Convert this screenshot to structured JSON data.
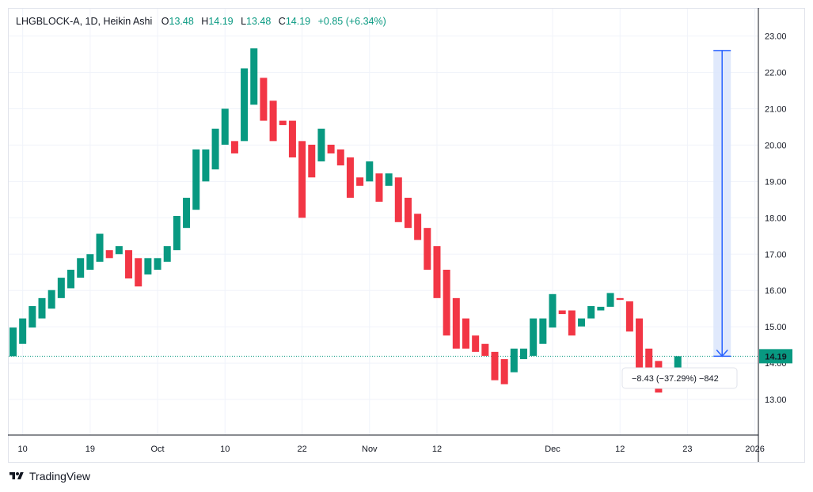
{
  "header": {
    "symbol": "LHGBLOCK-A, 1D, Heikin Ashi",
    "open_label": "O",
    "open_value": "13.48",
    "high_label": "H",
    "high_value": "14.19",
    "low_label": "L",
    "low_value": "13.48",
    "close_label": "C",
    "close_value": "14.19",
    "change": "+0.85 (+6.34%)"
  },
  "brand": {
    "name": "TradingView"
  },
  "colors": {
    "up": "#089981",
    "down": "#f23645",
    "measure": "#2962ff",
    "measure_fill": "#dbe5fb",
    "grid": "#f0f3fa"
  },
  "chart_data": {
    "type": "candlestick",
    "title": "LHGBLOCK-A, 1D, Heikin Ashi",
    "ylim": [
      12.0,
      23.6
    ],
    "y_ticks": [
      13.0,
      14.0,
      15.0,
      16.0,
      17.0,
      18.0,
      19.0,
      20.0,
      21.0,
      22.0,
      23.0
    ],
    "y_tick_labels": [
      "13.00",
      "14.00",
      "15.00",
      "16.00",
      "17.00",
      "18.00",
      "19.00",
      "20.00",
      "21.00",
      "22.00",
      "23.00"
    ],
    "x_ticks": [
      {
        "label": "10",
        "index": 1
      },
      {
        "label": "19",
        "index": 8
      },
      {
        "label": "Oct",
        "index": 15
      },
      {
        "label": "10",
        "index": 22
      },
      {
        "label": "22",
        "index": 30
      },
      {
        "label": "Nov",
        "index": 37
      },
      {
        "label": "12",
        "index": 44
      },
      {
        "label": "Dec",
        "index": 56
      },
      {
        "label": "12",
        "index": 63
      },
      {
        "label": "23",
        "index": 70
      },
      {
        "label": "2026",
        "index": 77
      }
    ],
    "last_price": "14.19",
    "candles": [
      {
        "o": 14.19,
        "c": 14.98
      },
      {
        "o": 14.53,
        "c": 15.23
      },
      {
        "o": 14.98,
        "c": 15.57
      },
      {
        "o": 15.23,
        "c": 15.79
      },
      {
        "o": 15.5,
        "c": 16.01
      },
      {
        "o": 15.79,
        "c": 16.35
      },
      {
        "o": 16.06,
        "c": 16.57
      },
      {
        "o": 16.35,
        "c": 16.89
      },
      {
        "o": 16.57,
        "c": 17.0
      },
      {
        "o": 16.79,
        "c": 17.56
      },
      {
        "o": 17.11,
        "c": 16.89
      },
      {
        "o": 17.0,
        "c": 17.22
      },
      {
        "o": 17.11,
        "c": 16.33
      },
      {
        "o": 16.89,
        "c": 16.11
      },
      {
        "o": 16.44,
        "c": 16.89
      },
      {
        "o": 16.57,
        "c": 16.89
      },
      {
        "o": 16.79,
        "c": 17.22
      },
      {
        "o": 17.11,
        "c": 18.05
      },
      {
        "o": 17.72,
        "c": 18.55
      },
      {
        "o": 18.22,
        "c": 19.88
      },
      {
        "o": 19.0,
        "c": 19.88
      },
      {
        "o": 19.33,
        "c": 20.45
      },
      {
        "o": 20.01,
        "c": 21.0
      },
      {
        "o": 20.11,
        "c": 19.77
      },
      {
        "o": 20.11,
        "c": 22.11
      },
      {
        "o": 21.11,
        "c": 22.66
      },
      {
        "o": 21.85,
        "c": 20.67
      },
      {
        "o": 21.22,
        "c": 20.11
      },
      {
        "o": 20.67,
        "c": 20.55
      },
      {
        "o": 20.67,
        "c": 19.66
      },
      {
        "o": 20.11,
        "c": 18.0
      },
      {
        "o": 20.01,
        "c": 19.11
      },
      {
        "o": 19.55,
        "c": 20.45
      },
      {
        "o": 20.01,
        "c": 19.77
      },
      {
        "o": 19.88,
        "c": 19.44
      },
      {
        "o": 19.66,
        "c": 18.55
      },
      {
        "o": 19.11,
        "c": 18.88
      },
      {
        "o": 19.0,
        "c": 19.55
      },
      {
        "o": 19.22,
        "c": 18.44
      },
      {
        "o": 18.88,
        "c": 19.22
      },
      {
        "o": 19.11,
        "c": 17.88
      },
      {
        "o": 18.55,
        "c": 17.72
      },
      {
        "o": 18.11,
        "c": 17.39
      },
      {
        "o": 17.72,
        "c": 16.57
      },
      {
        "o": 17.22,
        "c": 15.79
      },
      {
        "o": 16.57,
        "c": 14.76
      },
      {
        "o": 15.79,
        "c": 14.4
      },
      {
        "o": 15.23,
        "c": 14.4
      },
      {
        "o": 14.76,
        "c": 14.31
      },
      {
        "o": 14.53,
        "c": 14.2
      },
      {
        "o": 14.31,
        "c": 13.53
      },
      {
        "o": 14.11,
        "c": 13.42
      },
      {
        "o": 13.75,
        "c": 14.4
      },
      {
        "o": 14.11,
        "c": 14.4
      },
      {
        "o": 14.2,
        "c": 15.23
      },
      {
        "o": 14.53,
        "c": 15.23
      },
      {
        "o": 14.98,
        "c": 15.9
      },
      {
        "o": 15.45,
        "c": 15.35
      },
      {
        "o": 15.45,
        "c": 14.76
      },
      {
        "o": 15.01,
        "c": 15.23
      },
      {
        "o": 15.23,
        "c": 15.57
      },
      {
        "o": 15.45,
        "c": 15.55
      },
      {
        "o": 15.55,
        "c": 15.93
      },
      {
        "o": 15.79,
        "c": 15.74
      },
      {
        "o": 15.7,
        "c": 14.87
      },
      {
        "o": 15.23,
        "c": 13.53
      },
      {
        "o": 14.4,
        "c": 13.64
      },
      {
        "o": 14.06,
        "c": 13.19
      },
      {
        "o": 13.86,
        "c": 13.53
      },
      {
        "o": 13.48,
        "c": 14.19
      }
    ],
    "measure": {
      "from_price": 22.6,
      "to_price": 14.19,
      "index": 73.6,
      "label": "−8.43 (−37.29%) −842"
    }
  }
}
